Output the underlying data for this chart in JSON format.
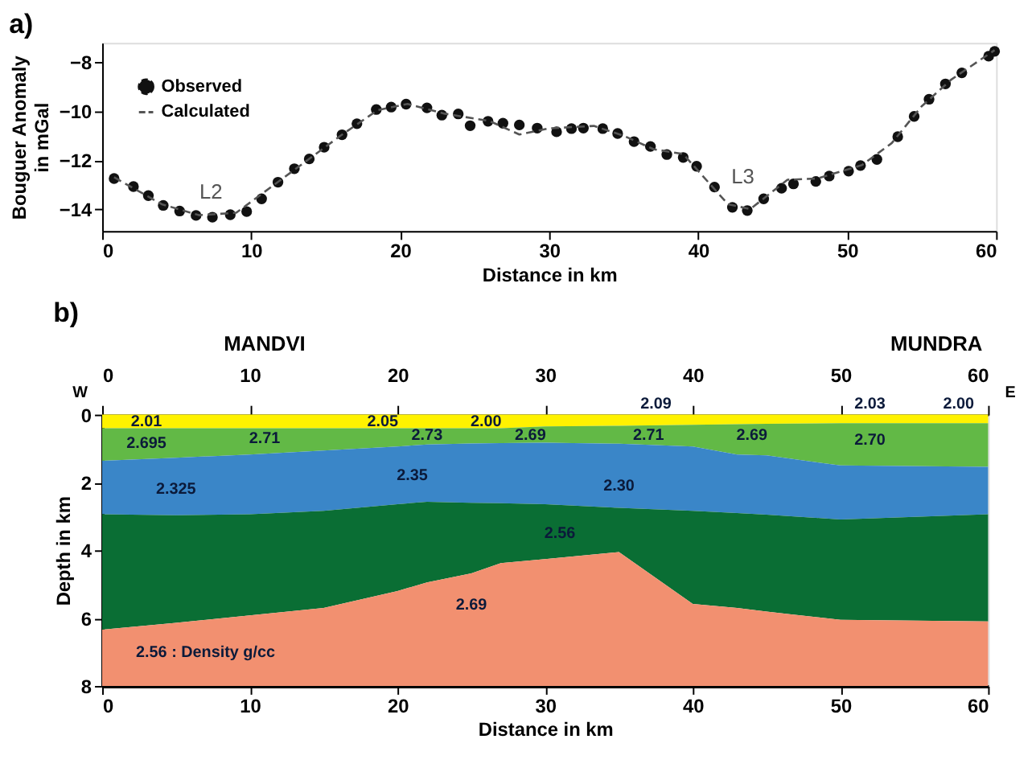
{
  "chart_data": [
    {
      "type": "scatter",
      "title": "a)",
      "xlabel": "Distance in km",
      "ylabel": "Bouguer Anomaly in mGal",
      "xlim": [
        0,
        60
      ],
      "xticks": [
        0,
        10,
        20,
        30,
        40,
        50,
        60
      ],
      "ylim": [
        -14.9,
        -7.2
      ],
      "yticks": [
        -14,
        -12,
        -10,
        -8
      ],
      "grid": false,
      "legend": "top left",
      "series": [
        {
          "name": "Observed",
          "type": "scatter",
          "marker": "circle",
          "color": "#111111",
          "x": [
            0.8,
            2.1,
            3.1,
            4.1,
            5.2,
            6.3,
            7.4,
            8.6,
            9.7,
            10.7,
            11.8,
            12.9,
            13.9,
            14.9,
            16.1,
            17.1,
            18.4,
            19.4,
            20.4,
            21.8,
            22.8,
            23.9,
            24.7,
            25.9,
            26.9,
            28.0,
            29.2,
            30.5,
            31.5,
            32.3,
            33.6,
            34.6,
            35.7,
            36.8,
            37.9,
            39.0,
            39.9,
            41.1,
            42.3,
            43.3,
            44.4,
            45.6,
            46.4,
            47.9,
            48.8,
            50.1,
            50.9,
            52.0,
            53.4,
            54.5,
            55.5,
            56.6,
            57.7,
            59.5,
            59.9
          ],
          "values": [
            -12.75,
            -13.08,
            -13.45,
            -13.85,
            -14.08,
            -14.26,
            -14.33,
            -14.23,
            -14.1,
            -13.58,
            -12.9,
            -12.35,
            -11.95,
            -11.47,
            -10.96,
            -10.51,
            -9.93,
            -9.83,
            -9.71,
            -9.86,
            -10.16,
            -10.11,
            -10.59,
            -10.41,
            -10.49,
            -10.56,
            -10.69,
            -10.84,
            -10.71,
            -10.69,
            -10.71,
            -10.91,
            -11.24,
            -11.44,
            -11.77,
            -11.89,
            -12.25,
            -13.1,
            -13.93,
            -14.06,
            -13.58,
            -13.15,
            -12.97,
            -12.87,
            -12.65,
            -12.45,
            -12.22,
            -11.97,
            -11.04,
            -10.21,
            -9.51,
            -8.88,
            -8.43,
            -7.75,
            -7.55
          ]
        },
        {
          "name": "Calculated",
          "type": "line",
          "line_style": "dashed",
          "color": "#555555",
          "x": [
            0.8,
            4,
            6.5,
            9,
            12,
            16,
            18.5,
            20.5,
            23,
            26,
            28,
            30,
            33,
            35,
            37,
            39,
            42,
            43.5,
            46,
            48,
            51,
            53,
            55,
            57,
            59.9
          ],
          "values": [
            -12.7,
            -13.8,
            -14.25,
            -14.15,
            -12.8,
            -11,
            -9.95,
            -9.7,
            -10.1,
            -10.4,
            -10.95,
            -10.7,
            -10.6,
            -11,
            -11.55,
            -11.75,
            -13.8,
            -14,
            -12.8,
            -12.75,
            -12.2,
            -11.3,
            -9.8,
            -8.7,
            -7.5
          ]
        }
      ],
      "annotations": [
        "L2",
        "L3"
      ]
    },
    {
      "type": "area",
      "stacked": true,
      "title": "b)",
      "xlabel": "Distance in km",
      "ylabel": "Depth in km",
      "xlim": [
        0,
        60
      ],
      "xticks": [
        0,
        10,
        20,
        30,
        40,
        50,
        60
      ],
      "x2lim": [
        0,
        60
      ],
      "x2ticks": [
        0,
        10,
        20,
        30,
        40,
        50,
        60
      ],
      "ylim": [
        8,
        0
      ],
      "yticks": [
        0,
        2,
        4,
        6,
        8
      ],
      "grid": false,
      "x": [
        0,
        5,
        10,
        15,
        20,
        22,
        25,
        27,
        30,
        35,
        40,
        43,
        45,
        50,
        60
      ],
      "series": [
        {
          "color": "#fff200",
          "values": [
            0.4,
            0.4,
            0.4,
            0.4,
            0.4,
            0.4,
            0.4,
            0.4,
            0.35,
            0.33,
            0.3,
            0.28,
            0.27,
            0.25,
            0.25
          ]
        },
        {
          "color": "#62b946",
          "values": [
            0.96,
            0.87,
            0.78,
            0.66,
            0.54,
            0.48,
            0.45,
            0.44,
            0.48,
            0.53,
            0.64,
            0.9,
            0.93,
            1.25,
            1.29
          ]
        },
        {
          "color": "#3a86c8",
          "values": [
            1.58,
            1.7,
            1.76,
            1.78,
            1.7,
            1.69,
            1.75,
            1.77,
            1.81,
            1.89,
            1.9,
            1.72,
            1.75,
            1.59,
            1.4
          ]
        },
        {
          "color": "#0a6e34",
          "values": [
            3.4,
            3.17,
            2.98,
            2.86,
            2.56,
            2.38,
            2.08,
            1.77,
            1.62,
            1.3,
            2.74,
            2.8,
            2.86,
            2.96,
            3.16
          ]
        },
        {
          "color": "#f29070",
          "values": [
            1.66,
            1.86,
            2.08,
            2.3,
            2.8,
            3.05,
            3.32,
            3.62,
            3.74,
            3.95,
            2.42,
            2.3,
            2.19,
            1.95,
            1.9
          ]
        }
      ],
      "annotations": [
        "2.01",
        "2.05",
        "2.00",
        "2.09",
        "2.03",
        "2.00",
        "2.695",
        "2.71",
        "2.73",
        "2.69",
        "2.71",
        "2.69",
        "2.70",
        "2.325",
        "2.35",
        "2.30",
        "2.56",
        "2.69",
        "2.56 : Density g/cc",
        "MANDVI",
        "MUNDRA",
        "W",
        "E"
      ]
    }
  ]
}
